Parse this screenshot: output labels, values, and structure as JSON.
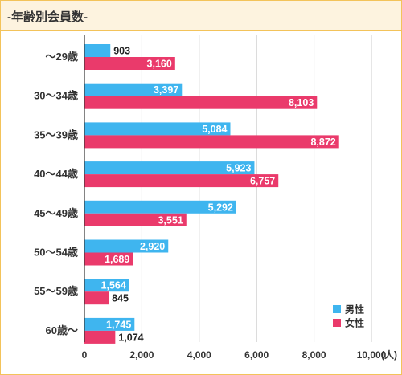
{
  "header": {
    "title": "-年齢別会員数-"
  },
  "colors": {
    "male": "#3fb5ef",
    "female": "#ea3a6b",
    "grid": "#cccccc",
    "axis": "#333333",
    "border": "#f3c35a",
    "header_bg": "#fdf3df"
  },
  "chart_data": {
    "type": "bar",
    "orientation": "horizontal",
    "title": "-年齢別会員数-",
    "categories": [
      "〜29歳",
      "30〜34歳",
      "35〜39歳",
      "40〜44歳",
      "45〜49歳",
      "50〜54歳",
      "55〜59歳",
      "60歳〜"
    ],
    "series": [
      {
        "name": "男性",
        "values": [
          903,
          3397,
          5084,
          5923,
          5292,
          2920,
          1564,
          1745
        ],
        "labels": [
          "903",
          "3,397",
          "5,084",
          "5,923",
          "5,292",
          "2,920",
          "1,564",
          "1,745"
        ]
      },
      {
        "name": "女性",
        "values": [
          3160,
          8103,
          8872,
          6757,
          3551,
          1689,
          845,
          1074
        ],
        "labels": [
          "3,160",
          "8,103",
          "8,872",
          "6,757",
          "3,551",
          "1,689",
          "845",
          "1,074"
        ]
      }
    ],
    "xlim": [
      0,
      10000
    ],
    "xticks": [
      0,
      2000,
      4000,
      6000,
      8000,
      10000
    ],
    "xtick_labels": [
      "0",
      "2,000",
      "4,000",
      "6,000",
      "8,000",
      "10,000"
    ],
    "unit": "(人)",
    "grid": true,
    "legend_position": "bottom-right"
  }
}
